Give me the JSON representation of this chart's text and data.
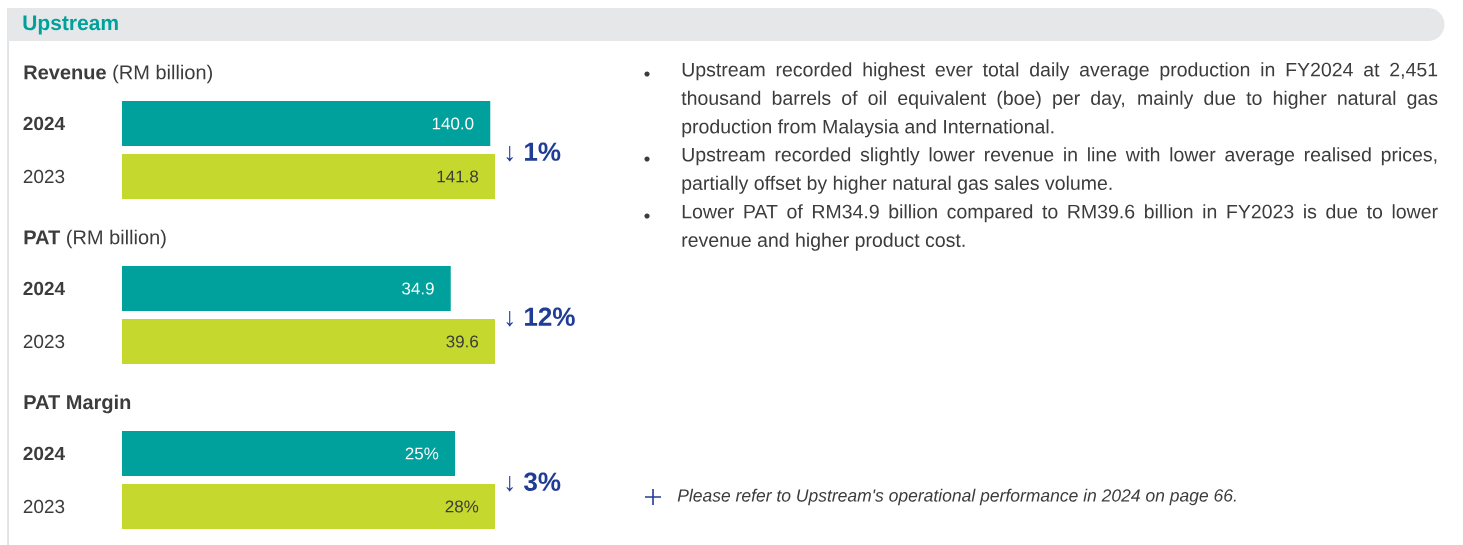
{
  "chart_data": [
    {
      "type": "bar",
      "orientation": "horizontal",
      "title": "**Revenue** (RM billion)",
      "categories": [
        "2024",
        "2023"
      ],
      "values": [
        140.0,
        141.8
      ],
      "value_labels": [
        "140.0",
        "141.8"
      ],
      "colors": [
        "#00a19c",
        "#c5d82e"
      ],
      "tick_labels": "y",
      "annotations": [
        "↓ 1%"
      ]
    },
    {
      "type": "bar",
      "orientation": "horizontal",
      "title": "**PAT** (RM billion)",
      "categories": [
        "2024",
        "2023"
      ],
      "values": [
        34.9,
        39.6
      ],
      "colors": [
        "#00a19c",
        "#c5d82e"
      ],
      "tick_labels": "y",
      "data_labels": true,
      "annotations": [
        "↓ 12%"
      ]
    },
    {
      "type": "bar",
      "orientation": "horizontal",
      "title": "**PAT Margin**",
      "categories": [
        "2024",
        "2023"
      ],
      "values": [
        25,
        28
      ],
      "value_labels": [
        "25%",
        "28%"
      ],
      "colors": [
        "#00a19c",
        "#c5d82e"
      ],
      "tick_labels": "y",
      "annotations": [
        "↓ 3%"
      ]
    },
    {
      "type": "other",
      "title": "Upstream",
      "annotations": [
        "Upstream recorded highest ever total daily average production in FY2024 at 2,451 thousand barrels of oil equivalent (boe) per day, mainly due to higher natural gas production from Malaysia and International.",
        "Upstream recorded slightly lower revenue in line with lower average realised prices, partially offset by higher natural gas sales volume.",
        "Lower PAT of RM34.9 billion compared to RM39.6 billion in FY2023 is due to lower revenue and higher product cost.",
        "Please refer to Upstream's operational performance in 2024 on page 66."
      ]
    }
  ]
}
